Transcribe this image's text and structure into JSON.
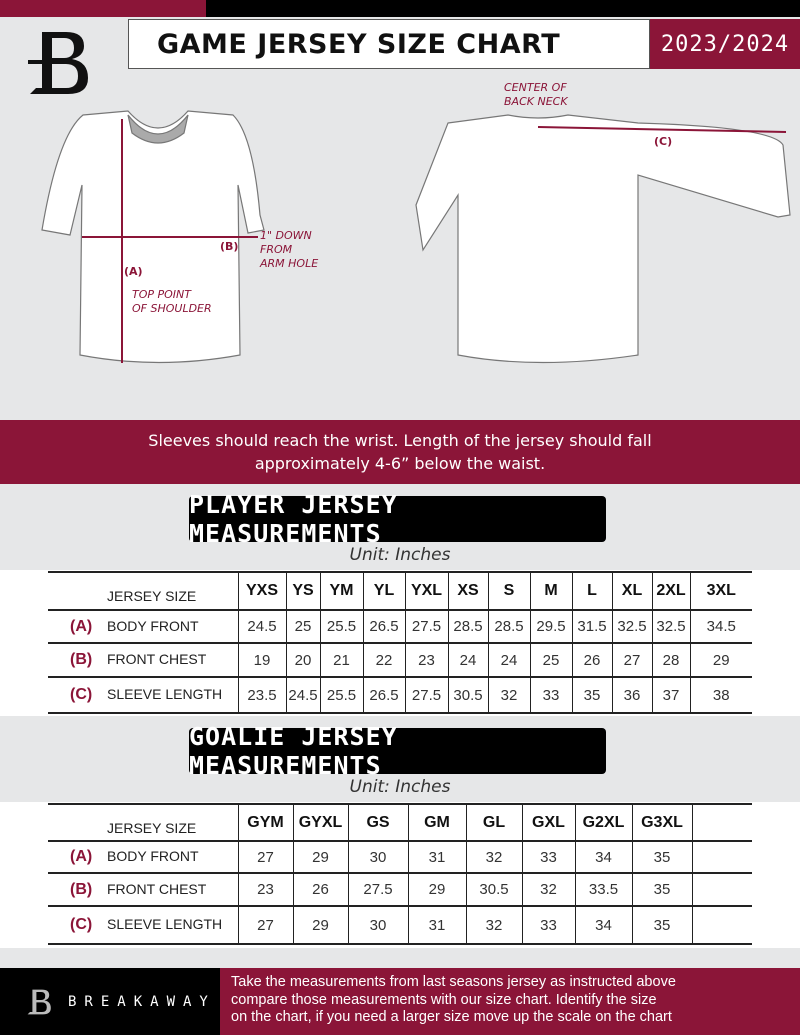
{
  "header": {
    "title": "GAME JERSEY SIZE CHART",
    "season": "2023/2024",
    "logo": "breakaway-b-logo"
  },
  "diagram": {
    "back_neck_note": [
      "CENTER OF",
      "BACK NECK"
    ],
    "arm_hole_note": [
      "1\" DOWN",
      "FROM",
      "ARM HOLE"
    ],
    "shoulder_note": [
      "TOP POINT",
      "OF SHOULDER"
    ],
    "label_a": "(A)",
    "label_b": "(B)",
    "label_c": "(C)"
  },
  "instruction_band": [
    "Sleeves should reach the wrist. Length of the jersey should fall",
    "approximately 4-6” below the waist."
  ],
  "player": {
    "title": "PLAYER JERSEY MEASUREMENTS",
    "unit": "Unit: Inches",
    "header_label": "JERSEY SIZE",
    "sizes": [
      "YXS",
      "YS",
      "YM",
      "YL",
      "YXL",
      "XS",
      "S",
      "M",
      "L",
      "XL",
      "2XL",
      "3XL"
    ],
    "rows": [
      {
        "letter": "(A)",
        "label": "BODY FRONT",
        "values": [
          "24.5",
          "25",
          "25.5",
          "26.5",
          "27.5",
          "28.5",
          "28.5",
          "29.5",
          "31.5",
          "32.5",
          "32.5",
          "34.5"
        ]
      },
      {
        "letter": "(B)",
        "label": "FRONT CHEST",
        "values": [
          "19",
          "20",
          "21",
          "22",
          "23",
          "24",
          "24",
          "25",
          "26",
          "27",
          "28",
          "29"
        ]
      },
      {
        "letter": "(C)",
        "label": "SLEEVE LENGTH",
        "values": [
          "23.5",
          "24.5",
          "25.5",
          "26.5",
          "27.5",
          "30.5",
          "32",
          "33",
          "35",
          "36",
          "37",
          "38"
        ]
      }
    ]
  },
  "goalie": {
    "title": "GOALIE JERSEY MEASUREMENTS",
    "unit": "Unit: Inches",
    "header_label": "JERSEY SIZE",
    "sizes": [
      "GYM",
      "GYXL",
      "GS",
      "GM",
      "GL",
      "GXL",
      "G2XL",
      "G3XL",
      ""
    ],
    "rows": [
      {
        "letter": "(A)",
        "label": "BODY FRONT",
        "values": [
          "27",
          "29",
          "30",
          "31",
          "32",
          "33",
          "34",
          "35",
          ""
        ]
      },
      {
        "letter": "(B)",
        "label": "FRONT CHEST",
        "values": [
          "23",
          "26",
          "27.5",
          "29",
          "30.5",
          "32",
          "33.5",
          "35",
          ""
        ]
      },
      {
        "letter": "(C)",
        "label": "SLEEVE LENGTH",
        "values": [
          "27",
          "29",
          "30",
          "31",
          "32",
          "33",
          "34",
          "35",
          ""
        ]
      }
    ]
  },
  "footer": {
    "brand": "BREAKAWAY",
    "text": [
      "Take the measurements from last seasons jersey as instructed above",
      "compare those measurements  with our size chart. Identify the size",
      "on the chart, if you need a larger size move up the scale on the chart"
    ]
  },
  "colors": {
    "accent": "#8b1538",
    "background": "#e6e7e8",
    "dark": "#000000"
  }
}
